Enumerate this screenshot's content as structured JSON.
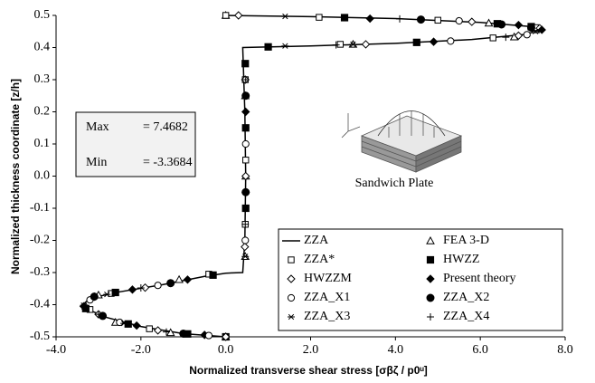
{
  "chart_data": {
    "type": "line",
    "xlabel": "Normalized transverse shear stress [σβζ / p0ᵘ]",
    "ylabel": "Normalized thickness coordinate [z/h]",
    "xlim": [
      -4,
      8
    ],
    "xticks": [
      {
        "value": -4,
        "label": "-4.0"
      },
      {
        "value": -2,
        "label": "-2.0"
      },
      {
        "value": 0,
        "label": "0.0"
      },
      {
        "value": 2,
        "label": "2.0"
      },
      {
        "value": 4,
        "label": "4.0"
      },
      {
        "value": 6,
        "label": "6.0"
      },
      {
        "value": 8,
        "label": "8.0"
      }
    ],
    "ylim": [
      -0.5,
      0.5
    ],
    "yticks": [
      -0.5,
      -0.4,
      -0.3,
      -0.2,
      -0.1,
      {
        "value": 0,
        "label": "0.0"
      },
      0.1,
      0.2,
      0.3,
      0.4,
      0.5
    ],
    "annotations": {
      "max_label": "Max",
      "max_value": "= 7.4682",
      "min_label": "Min",
      "min_value": "= -3.3684",
      "inset_label": "Sandwich Plate"
    },
    "legend": "lower right",
    "series": [
      {
        "name": "ZZA",
        "color": "#000000",
        "marker": "line",
        "x": [
          0,
          -1.0,
          -2.0,
          -2.8,
          -3.3,
          -3.37,
          -3.2,
          -2.5,
          -1.5,
          -0.5,
          0,
          0.4,
          0.45,
          0.47,
          0.45,
          0.4,
          2.0,
          4.0,
          5.8,
          7.0,
          7.47,
          7.2,
          6.0,
          4.0,
          2.0,
          0
        ],
        "values": [
          -0.5,
          -0.49,
          -0.468,
          -0.44,
          -0.412,
          -0.4,
          -0.38,
          -0.36,
          -0.338,
          -0.312,
          -0.302,
          -0.3,
          -0.2,
          0,
          0.2,
          0.4,
          0.405,
          0.413,
          0.425,
          0.44,
          0.455,
          0.465,
          0.478,
          0.49,
          0.496,
          0.5
        ]
      },
      {
        "name": "FEA 3-D",
        "color": "#000000",
        "marker": "triangle-open",
        "x": [
          0,
          -1.3,
          -2.6,
          -3.3,
          -3.0,
          -1.1,
          0.46,
          0.47,
          0.46,
          3.0,
          6.8,
          7.3,
          6.2,
          0
        ],
        "values": [
          -0.5,
          -0.487,
          -0.455,
          -0.405,
          -0.37,
          -0.322,
          -0.25,
          0,
          0.25,
          0.41,
          0.433,
          0.455,
          0.476,
          0.5
        ]
      },
      {
        "name": "ZZA*",
        "color": "#000000",
        "marker": "square-open",
        "x": [
          0,
          -1.8,
          -3.2,
          -2.7,
          -0.4,
          0.46,
          0.47,
          0.46,
          2.7,
          6.3,
          7.3,
          5.0,
          2.2,
          0
        ],
        "values": [
          -0.5,
          -0.475,
          -0.415,
          -0.365,
          -0.305,
          -0.15,
          0.05,
          0.3,
          0.41,
          0.43,
          0.462,
          0.485,
          0.494,
          0.5
        ]
      },
      {
        "name": "HWZZ",
        "color": "#000000",
        "marker": "square-filled",
        "x": [
          0,
          -0.9,
          -2.3,
          -3.3,
          -2.6,
          -0.3,
          0.47,
          0.47,
          0.46,
          1.0,
          4.5,
          7.2,
          6.4,
          2.8
        ],
        "values": [
          -0.5,
          -0.491,
          -0.46,
          -0.412,
          -0.362,
          -0.308,
          -0.1,
          0.15,
          0.35,
          0.402,
          0.416,
          0.465,
          0.474,
          0.493
        ]
      },
      {
        "name": "HWZZM",
        "color": "#000000",
        "marker": "diamond-open",
        "x": [
          0,
          -1.6,
          -3.0,
          -3.1,
          -1.9,
          0.45,
          0.47,
          0.46,
          3.3,
          6.9,
          7.4,
          5.8,
          0.3
        ],
        "values": [
          -0.5,
          -0.48,
          -0.43,
          -0.375,
          -0.347,
          -0.22,
          0.0,
          0.3,
          0.41,
          0.437,
          0.46,
          0.48,
          0.5
        ]
      },
      {
        "name": "Present theory",
        "color": "#000000",
        "marker": "diamond-filled",
        "x": [
          -0.5,
          -2.1,
          -3.35,
          -2.2,
          -0.9,
          0.47,
          0.47,
          4.9,
          7.45,
          6.9,
          3.4
        ],
        "values": [
          -0.494,
          -0.465,
          -0.405,
          -0.353,
          -0.322,
          -0.05,
          0.2,
          0.418,
          0.455,
          0.47,
          0.49
        ]
      },
      {
        "name": "ZZA_X1",
        "color": "#000000",
        "marker": "circle-open",
        "x": [
          -0.4,
          -2.5,
          -3.2,
          -1.6,
          0.46,
          0.47,
          5.3,
          7.1,
          5.5
        ],
        "values": [
          -0.496,
          -0.455,
          -0.385,
          -0.34,
          -0.2,
          0.1,
          0.42,
          0.44,
          0.483
        ]
      },
      {
        "name": "ZZA_X2",
        "color": "#000000",
        "marker": "circle-filled",
        "x": [
          -1.0,
          -2.9,
          -3.1,
          -1.3,
          0.47,
          0.47,
          7.2,
          6.5,
          4.6
        ],
        "values": [
          -0.49,
          -0.435,
          -0.375,
          -0.333,
          -0.05,
          0.25,
          0.462,
          0.472,
          0.487
        ]
      },
      {
        "name": "ZZA_X3",
        "color": "#000000",
        "marker": "star",
        "x": [
          -2.4,
          -3.35,
          -2.8,
          0.46,
          0.47,
          1.4,
          3.0,
          7.3,
          1.4
        ],
        "values": [
          -0.458,
          -0.402,
          -0.368,
          -0.25,
          0.15,
          0.405,
          0.41,
          0.45,
          0.497
        ]
      },
      {
        "name": "ZZA_X4",
        "color": "#000000",
        "marker": "plus",
        "x": [
          -1.4,
          -3.0,
          -2.0,
          0.46,
          0.47,
          2.6,
          6.6,
          4.1
        ],
        "values": [
          -0.485,
          -0.43,
          -0.348,
          -0.15,
          0.3,
          0.408,
          0.432,
          0.489
        ]
      }
    ]
  }
}
